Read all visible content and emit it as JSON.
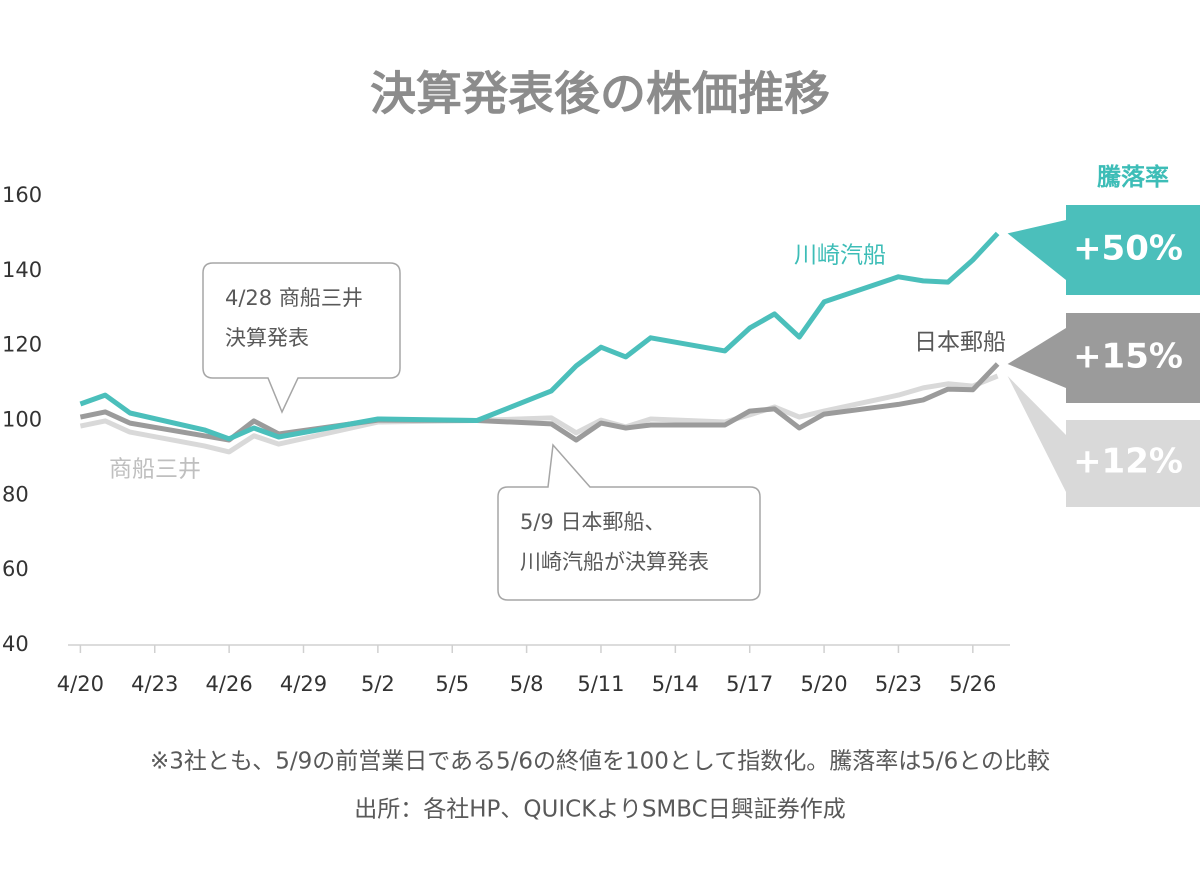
{
  "chart_data": {
    "type": "line",
    "title": "決算発表後の株価推移",
    "xlim": [
      -0.5,
      37.5
    ],
    "xticks": [
      {
        "value": 0,
        "label": "4/20"
      },
      {
        "value": 3,
        "label": "4/23"
      },
      {
        "value": 6,
        "label": "4/26"
      },
      {
        "value": 9,
        "label": "4/29"
      },
      {
        "value": 12,
        "label": "5/2"
      },
      {
        "value": 15,
        "label": "5/5"
      },
      {
        "value": 18,
        "label": "5/8"
      },
      {
        "value": 21,
        "label": "5/11"
      },
      {
        "value": 24,
        "label": "5/14"
      },
      {
        "value": 27,
        "label": "5/17"
      },
      {
        "value": 30,
        "label": "5/20"
      },
      {
        "value": 33,
        "label": "5/23"
      },
      {
        "value": 36,
        "label": "5/26"
      }
    ],
    "ylim": [
      40,
      160
    ],
    "yticks": [
      40,
      60,
      80,
      100,
      120,
      140,
      160
    ],
    "x": [
      0,
      1,
      2,
      5,
      6,
      7,
      8,
      12,
      16,
      19,
      20,
      21,
      22,
      23,
      26,
      27,
      28,
      29,
      30,
      33,
      34,
      35,
      36,
      37
    ],
    "change_header": "騰落率",
    "series": [
      {
        "name": "川崎汽船",
        "color": "#4bbfbb",
        "change_label": "+50%",
        "values": [
          104.4,
          106.8,
          102.0,
          97.5,
          95.1,
          98.0,
          95.6,
          100.4,
          100,
          107.9,
          114.6,
          119.6,
          117.0,
          122.1,
          118.6,
          124.7,
          128.5,
          122.3,
          131.7,
          138.4,
          137.3,
          137.0,
          142.9,
          150
        ]
      },
      {
        "name": "日本郵船",
        "color": "#9b9b9b",
        "change_label": "+15%",
        "values": [
          100.9,
          102.3,
          99.3,
          95.9,
          94.8,
          99.9,
          96.4,
          100.1,
          100,
          99.1,
          94.8,
          99.3,
          98.0,
          98.8,
          98.8,
          102.5,
          103.1,
          98.0,
          101.7,
          104.3,
          105.5,
          108.4,
          108.2,
          115.1
        ]
      },
      {
        "name": "商船三井",
        "color": "#d9d9d9",
        "change_label": "+12%",
        "values": [
          98.5,
          99.9,
          96.9,
          93.2,
          91.6,
          95.9,
          93.7,
          99.6,
          100,
          100.7,
          96.7,
          100.1,
          98.3,
          100.4,
          99.6,
          101.5,
          103.6,
          100.9,
          102.5,
          106.8,
          108.7,
          109.8,
          109.2,
          111.9
        ]
      }
    ],
    "annotations": [
      {
        "lines": [
          "4/28 商船三井",
          "決算発表"
        ]
      },
      {
        "lines": [
          "5/9 日本郵船、",
          "川崎汽船が決算発表"
        ]
      }
    ],
    "notes": [
      "※3社とも、5/9の前営業日である5/6の終値を100として指数化。騰落率は5/6との比較",
      "出所：各社HP、QUICKよりSMBC日興証券作成"
    ]
  }
}
